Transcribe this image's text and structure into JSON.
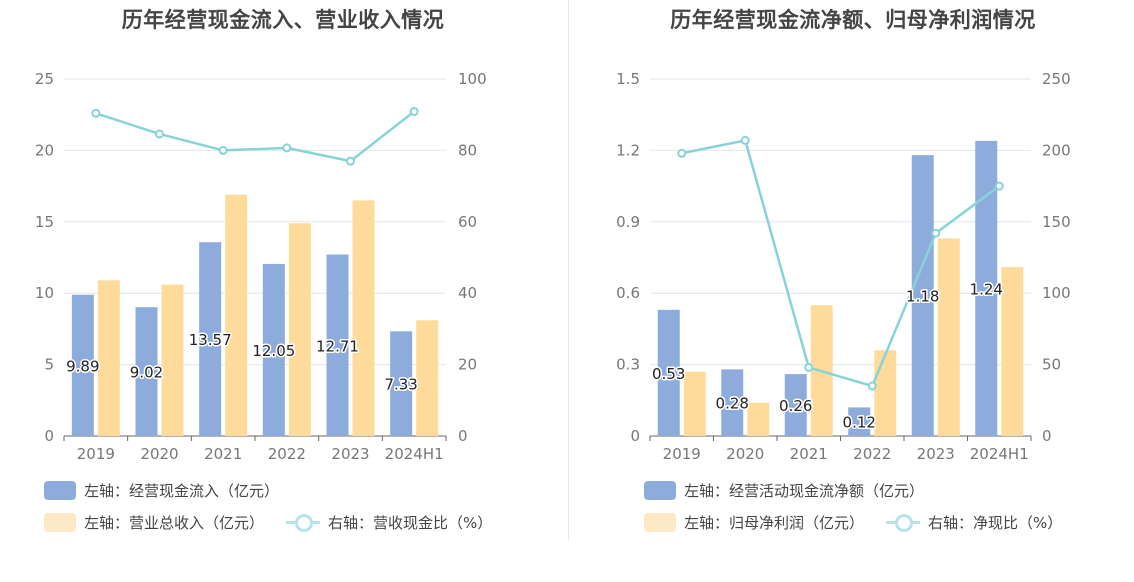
{
  "colors": {
    "bar_primary": "#8dacdb",
    "bar_secondary": "#ffdb9b",
    "bar_secondary_legend": "#fde9c6",
    "line": "#88d3d8",
    "line_legend": "#b5e3e7",
    "grid": "#e3e6ee"
  },
  "chart_data": [
    {
      "type": "bar",
      "title": "历年经营现金流入、营业收入情况",
      "categories": [
        "2019",
        "2020",
        "2021",
        "2022",
        "2023",
        "2024H1"
      ],
      "y_left": {
        "ticks": [
          "0",
          "5",
          "10",
          "15",
          "20",
          "25"
        ],
        "range": [
          0,
          25
        ]
      },
      "y_right": {
        "ticks": [
          "0",
          "20",
          "40",
          "60",
          "80",
          "100"
        ],
        "range": [
          0,
          100
        ]
      },
      "series": [
        {
          "name": "左轴：经营现金流入（亿元）",
          "kind": "bar",
          "axis": "left",
          "values": [
            9.89,
            9.02,
            13.57,
            12.05,
            12.71,
            7.33
          ],
          "labels": [
            "9.89",
            "9.02",
            "13.57",
            "12.05",
            "12.71",
            "7.33"
          ]
        },
        {
          "name": "左轴：营业总收入（亿元）",
          "kind": "bar",
          "axis": "left",
          "values": [
            10.9,
            10.6,
            16.9,
            14.9,
            16.5,
            8.1
          ]
        },
        {
          "name": "右轴：营收现金比（%）",
          "kind": "line",
          "axis": "right",
          "values": [
            90.4,
            84.6,
            80.0,
            80.7,
            77.0,
            90.9
          ]
        }
      ],
      "grid": true,
      "legend_position": "bottom-left"
    },
    {
      "type": "bar",
      "title": "历年经营现金流净额、归母净利润情况",
      "categories": [
        "2019",
        "2020",
        "2021",
        "2022",
        "2023",
        "2024H1"
      ],
      "y_left": {
        "ticks": [
          "0",
          "0.3",
          "0.6",
          "0.9",
          "1.2",
          "1.5"
        ],
        "range": [
          0,
          1.5
        ]
      },
      "y_right": {
        "ticks": [
          "0",
          "50",
          "100",
          "150",
          "200",
          "250"
        ],
        "range": [
          0,
          250
        ]
      },
      "series": [
        {
          "name": "左轴：经营活动现金流净额（亿元）",
          "kind": "bar",
          "axis": "left",
          "values": [
            0.53,
            0.28,
            0.26,
            0.12,
            1.18,
            1.24
          ],
          "labels": [
            "0.53",
            "0.28",
            "0.26",
            "0.12",
            "1.18",
            "1.24"
          ]
        },
        {
          "name": "左轴：归母净利润（亿元）",
          "kind": "bar",
          "axis": "left",
          "values": [
            0.27,
            0.14,
            0.55,
            0.36,
            0.83,
            0.71
          ]
        },
        {
          "name": "右轴：净现比（%）",
          "kind": "line",
          "axis": "right",
          "values": [
            198,
            207,
            48,
            35,
            142,
            175
          ]
        }
      ],
      "grid": true,
      "legend_position": "bottom-left"
    }
  ]
}
